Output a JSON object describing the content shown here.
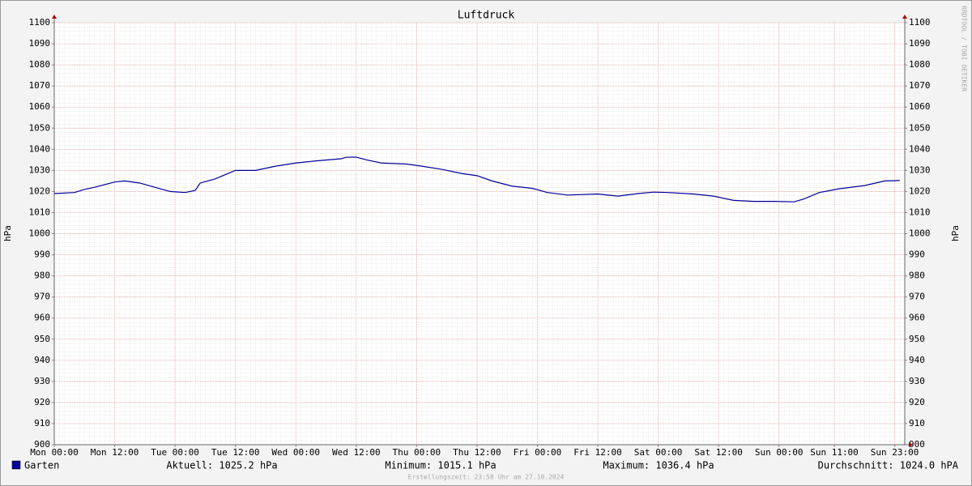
{
  "chart_data": {
    "type": "line",
    "title": "Luftdruck",
    "y_label": "hPa",
    "y2_label": "hPa",
    "watermark": "RRDTOOL / TOBI OETIKER",
    "footer": "Erstellungszeit: 23:58 Uhr am 27.10.2024",
    "x": [
      0,
      4,
      6,
      8,
      12,
      14,
      17,
      20,
      23,
      26,
      28,
      29,
      32,
      34,
      36,
      40,
      44,
      48,
      52,
      57,
      58,
      60,
      62,
      65,
      70,
      73,
      77,
      81,
      84,
      87,
      91,
      95,
      98,
      102,
      108,
      112,
      116,
      119,
      122,
      127,
      131,
      135,
      139,
      143,
      147,
      149,
      152,
      156,
      161,
      165,
      168
    ],
    "series": [
      {
        "name": "Garten",
        "color": "#000099",
        "values": [
          1019,
          1019.5,
          1021,
          1022,
          1024.5,
          1025,
          1024,
          1022,
          1020,
          1019.5,
          1020.5,
          1024,
          1026,
          1028,
          1030,
          1030,
          1032,
          1033.5,
          1034.5,
          1035.5,
          1036.2,
          1036.3,
          1035,
          1033.5,
          1033,
          1032,
          1030.5,
          1028.5,
          1027.5,
          1025,
          1022.5,
          1021.5,
          1019.5,
          1018.3,
          1018.8,
          1017.8,
          1019,
          1019.7,
          1019.5,
          1018.8,
          1017.8,
          1015.8,
          1015.3,
          1015.3,
          1015.1,
          1016.5,
          1019.5,
          1021.3,
          1022.8,
          1025,
          1025.2
        ]
      }
    ],
    "stats": [
      "Aktuell: 1025.2 hPa",
      "Minimum: 1015.1 hPa",
      "Maximum: 1036.4 hPa",
      "Durchschnitt: 1024.0 hPA"
    ],
    "xlim": [
      0,
      169
    ],
    "xticks": [
      {
        "value": 0,
        "label": "Mon 00:00"
      },
      {
        "value": 12,
        "label": "Mon 12:00"
      },
      {
        "value": 24,
        "label": "Tue 00:00"
      },
      {
        "value": 36,
        "label": "Tue 12:00"
      },
      {
        "value": 48,
        "label": "Wed 00:00"
      },
      {
        "value": 60,
        "label": "Wed 12:00"
      },
      {
        "value": 72,
        "label": "Thu 00:00"
      },
      {
        "value": 84,
        "label": "Thu 12:00"
      },
      {
        "value": 96,
        "label": "Fri 00:00"
      },
      {
        "value": 108,
        "label": "Fri 12:00"
      },
      {
        "value": 120,
        "label": "Sat 00:00"
      },
      {
        "value": 132,
        "label": "Sat 12:00"
      },
      {
        "value": 144,
        "label": "Sun 00:00"
      },
      {
        "value": 155,
        "label": "Sun 11:00"
      },
      {
        "value": 167,
        "label": "Sun 23:00"
      }
    ],
    "ylim": [
      900,
      1100
    ],
    "yticks": [
      900,
      910,
      920,
      930,
      940,
      950,
      960,
      970,
      980,
      990,
      1000,
      1010,
      1020,
      1030,
      1040,
      1050,
      1060,
      1070,
      1080,
      1090,
      1100
    ],
    "grid": true
  }
}
